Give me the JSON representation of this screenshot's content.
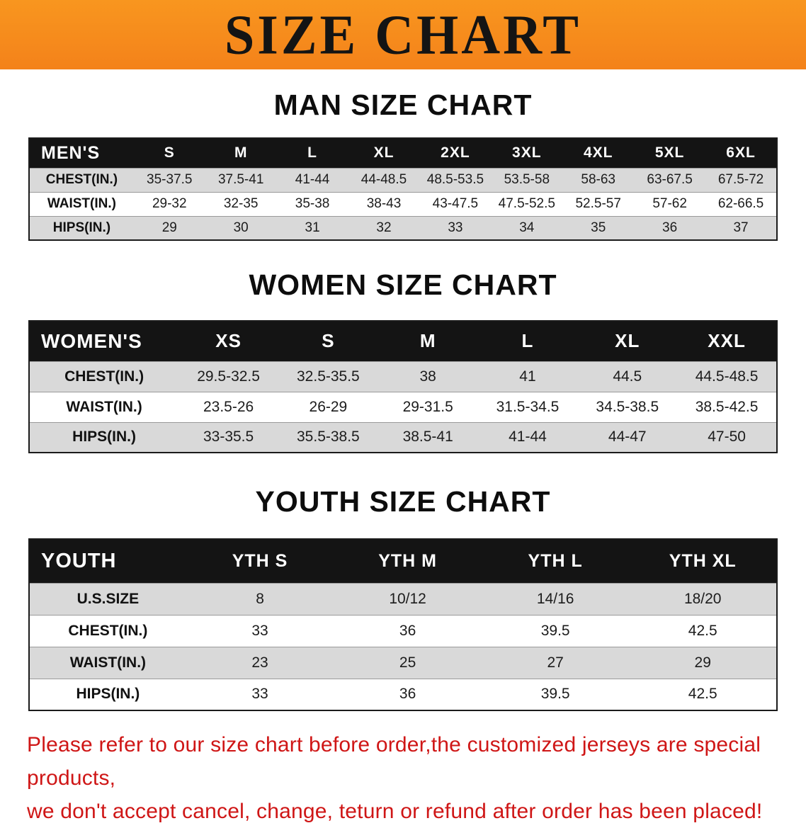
{
  "banner": {
    "title": "SIZE CHART"
  },
  "colors": {
    "banner_bg": "#f4821a",
    "table_header_bg": "#141414",
    "row_stripe": "#d9d9d9",
    "footer_text": "#cf1616"
  },
  "men": {
    "heading": "MAN SIZE CHART",
    "header": [
      "MEN'S",
      "S",
      "M",
      "L",
      "XL",
      "2XL",
      "3XL",
      "4XL",
      "5XL",
      "6XL"
    ],
    "rows": [
      {
        "label": "CHEST(IN.)",
        "values": [
          "35-37.5",
          "37.5-41",
          "41-44",
          "44-48.5",
          "48.5-53.5",
          "53.5-58",
          "58-63",
          "63-67.5",
          "67.5-72"
        ]
      },
      {
        "label": "WAIST(IN.)",
        "values": [
          "29-32",
          "32-35",
          "35-38",
          "38-43",
          "43-47.5",
          "47.5-52.5",
          "52.5-57",
          "57-62",
          "62-66.5"
        ]
      },
      {
        "label": "HIPS(IN.)",
        "values": [
          "29",
          "30",
          "31",
          "32",
          "33",
          "34",
          "35",
          "36",
          "37"
        ]
      }
    ]
  },
  "women": {
    "heading": "WOMEN SIZE CHART",
    "header": [
      "WOMEN'S",
      "XS",
      "S",
      "M",
      "L",
      "XL",
      "XXL"
    ],
    "rows": [
      {
        "label": "CHEST(IN.)",
        "values": [
          "29.5-32.5",
          "32.5-35.5",
          "38",
          "41",
          "44.5",
          "44.5-48.5"
        ]
      },
      {
        "label": "WAIST(IN.)",
        "values": [
          "23.5-26",
          "26-29",
          "29-31.5",
          "31.5-34.5",
          "34.5-38.5",
          "38.5-42.5"
        ]
      },
      {
        "label": "HIPS(IN.)",
        "values": [
          "33-35.5",
          "35.5-38.5",
          "38.5-41",
          "41-44",
          "44-47",
          "47-50"
        ]
      }
    ]
  },
  "youth": {
    "heading": "YOUTH SIZE CHART",
    "header": [
      "YOUTH",
      "YTH S",
      "YTH M",
      "YTH L",
      "YTH XL"
    ],
    "rows": [
      {
        "label": "U.S.SIZE",
        "values": [
          "8",
          "10/12",
          "14/16",
          "18/20"
        ]
      },
      {
        "label": "CHEST(IN.)",
        "values": [
          "33",
          "36",
          "39.5",
          "42.5"
        ]
      },
      {
        "label": "WAIST(IN.)",
        "values": [
          "23",
          "25",
          "27",
          "29"
        ]
      },
      {
        "label": "HIPS(IN.)",
        "values": [
          "33",
          "36",
          "39.5",
          "42.5"
        ]
      }
    ]
  },
  "footer": {
    "line1": "Please refer to our size chart before order,the customized jerseys are special products,",
    "line2": "we don't accept cancel, change, teturn or refund after order has been placed!"
  }
}
